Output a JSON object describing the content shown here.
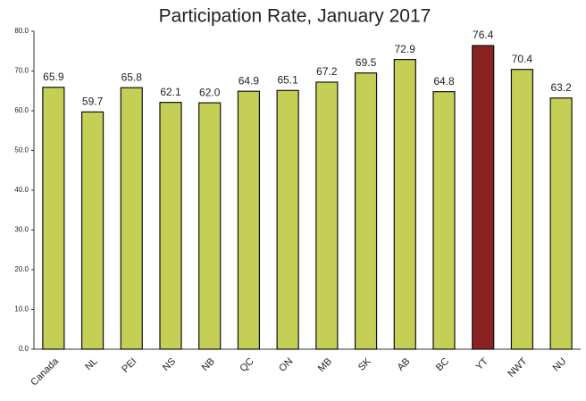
{
  "chart_data": {
    "type": "bar",
    "title": "Participation Rate, January 2017",
    "categories": [
      "Canada",
      "NL",
      "PEI",
      "NS",
      "NB",
      "QC",
      "ON",
      "MB",
      "SK",
      "AB",
      "BC",
      "YT",
      "NWT",
      "NU"
    ],
    "values": [
      65.9,
      59.7,
      65.8,
      62.1,
      62.0,
      64.9,
      65.1,
      67.2,
      69.5,
      72.9,
      64.8,
      76.4,
      70.4,
      63.2
    ],
    "value_labels": [
      "65.9",
      "59.7",
      "65.8",
      "62.1",
      "62.0",
      "64.9",
      "65.1",
      "67.2",
      "69.5",
      "72.9",
      "64.8",
      "76.4",
      "70.4",
      "63.2"
    ],
    "colors": [
      "#c5cf55",
      "#c5cf55",
      "#c5cf55",
      "#c5cf55",
      "#c5cf55",
      "#c5cf55",
      "#c5cf55",
      "#c5cf55",
      "#c5cf55",
      "#c5cf55",
      "#c5cf55",
      "#8b2222",
      "#c5cf55",
      "#c5cf55"
    ],
    "ylim": [
      0,
      80
    ],
    "yticks": [
      {
        "value": 0,
        "label": "0.0"
      },
      {
        "value": 10,
        "label": "10.0"
      },
      {
        "value": 20,
        "label": "20.0"
      },
      {
        "value": 30,
        "label": "30.0"
      },
      {
        "value": 40,
        "label": "40.0"
      },
      {
        "value": 50,
        "label": "50.0"
      },
      {
        "value": 60,
        "label": "60.0"
      },
      {
        "value": 70,
        "label": "70.0"
      },
      {
        "value": 80,
        "label": "80.0"
      }
    ]
  }
}
